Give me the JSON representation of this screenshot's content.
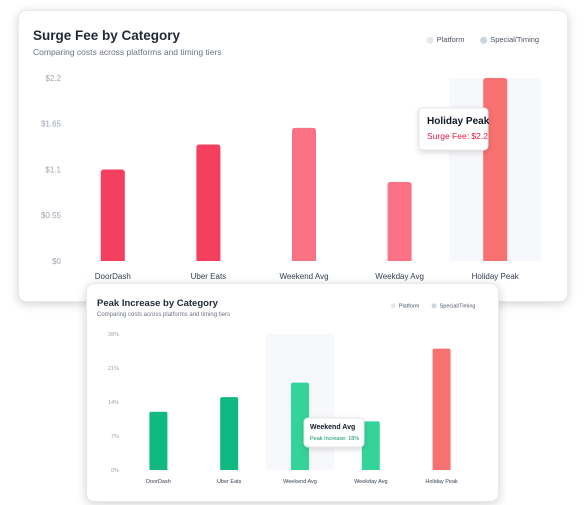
{
  "chart_data": [
    {
      "type": "bar",
      "title": "Surge Fee by Category",
      "subtitle": "Comparing costs across platforms and timing tiers",
      "categories": [
        "DoorDash",
        "Uber Eats",
        "Weekend Avg",
        "Weekday Avg",
        "Holiday Peak"
      ],
      "values": [
        1.1,
        1.4,
        1.6,
        0.95,
        2.2
      ],
      "y_ticks": [
        "$0",
        "$0.55",
        "$1.1",
        "$1.65",
        "$2.2"
      ],
      "ylim": [
        0,
        2.2
      ],
      "bar_colors": [
        "#f43f5e",
        "#f43f5e",
        "#fb7185",
        "#fb7185",
        "#f87171"
      ],
      "highlight_index": 4,
      "legend": [
        {
          "label": "Platform",
          "color": "#e5e7eb"
        },
        {
          "label": "Special/Timing",
          "color": "#cbd5e1"
        }
      ],
      "legend_position": "top-right",
      "tooltip": {
        "title": "Holiday Peak",
        "label": "Surge Fee: $2.2",
        "color": "#e11d48"
      }
    },
    {
      "type": "bar",
      "title": "Peak Increase by Category",
      "subtitle": "Comparing costs across platforms and timing tiers",
      "categories": [
        "DoorDash",
        "Uber Eats",
        "Weekend Avg",
        "Weekday Avg",
        "Holiday Peak"
      ],
      "values": [
        12,
        15,
        18,
        10,
        25
      ],
      "y_ticks": [
        "0%",
        "7%",
        "14%",
        "21%",
        "28%"
      ],
      "ylim": [
        0,
        28
      ],
      "bar_colors": [
        "#10b981",
        "#10b981",
        "#34d399",
        "#34d399",
        "#f87171"
      ],
      "highlight_index": 2,
      "legend": [
        {
          "label": "Platform",
          "color": "#e5e7eb"
        },
        {
          "label": "Special/Timing",
          "color": "#cbd5e1"
        }
      ],
      "legend_position": "top-right",
      "tooltip": {
        "title": "Weekend Avg",
        "label": "Peak Increase: 18%",
        "color": "#059669"
      }
    }
  ]
}
